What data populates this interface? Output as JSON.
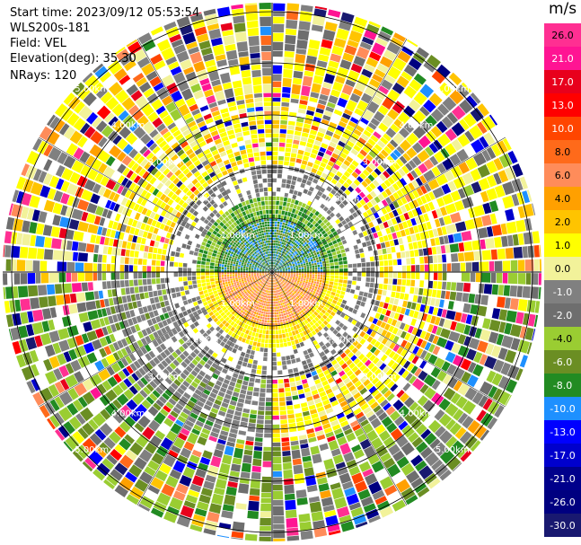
{
  "header": {
    "start_time": "Start time: 2023/09/12 05:53:54",
    "instrument": "WLS200s-181",
    "field": "Field: VEL",
    "elevation": "Elevation(deg): 35.30",
    "nrays": "NRays: 120"
  },
  "colorbar": {
    "unit": "m/s",
    "ticks": [
      "26.0",
      "21.0",
      "17.0",
      "13.0",
      "10.0",
      "8.0",
      "6.0",
      "4.0",
      "2.0",
      "1.0",
      "0.0",
      "-1.0",
      "-2.0",
      "-4.0",
      "-6.0",
      "-8.0",
      "-10.0",
      "-13.0",
      "-17.0",
      "-21.0",
      "-26.0",
      "-30.0"
    ],
    "colors": [
      "#ff2f92",
      "#ff1493",
      "#e8001c",
      "#ff0000",
      "#ff4500",
      "#ff6a1a",
      "#ff8c5a",
      "#ffa000",
      "#ffc400",
      "#ffff00",
      "#f2f29a",
      "#808080",
      "#6e6e6e",
      "#9acd32",
      "#6b8e23",
      "#228b22",
      "#1e90ff",
      "#0000ff",
      "#0000cd",
      "#00008b",
      "#000080",
      "#191970"
    ]
  },
  "chart_data": {
    "type": "ppi",
    "title": "",
    "field": "VEL",
    "units": "m/s",
    "elevation_deg": 35.3,
    "nrays": 120,
    "range_ring_labels_km": [
      "1.00km",
      "2.00km",
      "3.00km",
      "4.00km",
      "5.00km"
    ],
    "velocity_scale": [
      -30.0,
      26.0
    ],
    "pattern": {
      "near_center_positive_south": true,
      "near_center_negative_north": true,
      "outer_rings_noisy": true
    }
  }
}
